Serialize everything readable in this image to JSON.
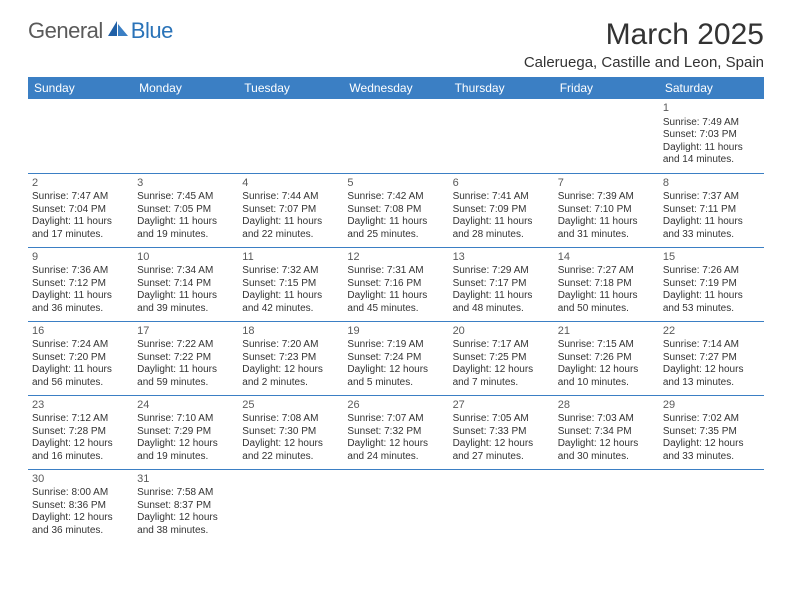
{
  "brand": {
    "general": "General",
    "blue": "Blue"
  },
  "title": "March 2025",
  "subtitle": "Caleruega, Castille and Leon, Spain",
  "day_headers": [
    "Sunday",
    "Monday",
    "Tuesday",
    "Wednesday",
    "Thursday",
    "Friday",
    "Saturday"
  ],
  "colors": {
    "header_bg": "#3b7fc4",
    "header_text": "#ffffff",
    "border": "#3b7fc4",
    "title_color": "#333333",
    "logo_gray": "#5a5a5a",
    "logo_blue": "#2a73b8"
  },
  "weeks": [
    [
      null,
      null,
      null,
      null,
      null,
      null,
      {
        "n": "1",
        "sunrise": "Sunrise: 7:49 AM",
        "sunset": "Sunset: 7:03 PM",
        "day": "Daylight: 11 hours and 14 minutes."
      }
    ],
    [
      {
        "n": "2",
        "sunrise": "Sunrise: 7:47 AM",
        "sunset": "Sunset: 7:04 PM",
        "day": "Daylight: 11 hours and 17 minutes."
      },
      {
        "n": "3",
        "sunrise": "Sunrise: 7:45 AM",
        "sunset": "Sunset: 7:05 PM",
        "day": "Daylight: 11 hours and 19 minutes."
      },
      {
        "n": "4",
        "sunrise": "Sunrise: 7:44 AM",
        "sunset": "Sunset: 7:07 PM",
        "day": "Daylight: 11 hours and 22 minutes."
      },
      {
        "n": "5",
        "sunrise": "Sunrise: 7:42 AM",
        "sunset": "Sunset: 7:08 PM",
        "day": "Daylight: 11 hours and 25 minutes."
      },
      {
        "n": "6",
        "sunrise": "Sunrise: 7:41 AM",
        "sunset": "Sunset: 7:09 PM",
        "day": "Daylight: 11 hours and 28 minutes."
      },
      {
        "n": "7",
        "sunrise": "Sunrise: 7:39 AM",
        "sunset": "Sunset: 7:10 PM",
        "day": "Daylight: 11 hours and 31 minutes."
      },
      {
        "n": "8",
        "sunrise": "Sunrise: 7:37 AM",
        "sunset": "Sunset: 7:11 PM",
        "day": "Daylight: 11 hours and 33 minutes."
      }
    ],
    [
      {
        "n": "9",
        "sunrise": "Sunrise: 7:36 AM",
        "sunset": "Sunset: 7:12 PM",
        "day": "Daylight: 11 hours and 36 minutes."
      },
      {
        "n": "10",
        "sunrise": "Sunrise: 7:34 AM",
        "sunset": "Sunset: 7:14 PM",
        "day": "Daylight: 11 hours and 39 minutes."
      },
      {
        "n": "11",
        "sunrise": "Sunrise: 7:32 AM",
        "sunset": "Sunset: 7:15 PM",
        "day": "Daylight: 11 hours and 42 minutes."
      },
      {
        "n": "12",
        "sunrise": "Sunrise: 7:31 AM",
        "sunset": "Sunset: 7:16 PM",
        "day": "Daylight: 11 hours and 45 minutes."
      },
      {
        "n": "13",
        "sunrise": "Sunrise: 7:29 AM",
        "sunset": "Sunset: 7:17 PM",
        "day": "Daylight: 11 hours and 48 minutes."
      },
      {
        "n": "14",
        "sunrise": "Sunrise: 7:27 AM",
        "sunset": "Sunset: 7:18 PM",
        "day": "Daylight: 11 hours and 50 minutes."
      },
      {
        "n": "15",
        "sunrise": "Sunrise: 7:26 AM",
        "sunset": "Sunset: 7:19 PM",
        "day": "Daylight: 11 hours and 53 minutes."
      }
    ],
    [
      {
        "n": "16",
        "sunrise": "Sunrise: 7:24 AM",
        "sunset": "Sunset: 7:20 PM",
        "day": "Daylight: 11 hours and 56 minutes."
      },
      {
        "n": "17",
        "sunrise": "Sunrise: 7:22 AM",
        "sunset": "Sunset: 7:22 PM",
        "day": "Daylight: 11 hours and 59 minutes."
      },
      {
        "n": "18",
        "sunrise": "Sunrise: 7:20 AM",
        "sunset": "Sunset: 7:23 PM",
        "day": "Daylight: 12 hours and 2 minutes."
      },
      {
        "n": "19",
        "sunrise": "Sunrise: 7:19 AM",
        "sunset": "Sunset: 7:24 PM",
        "day": "Daylight: 12 hours and 5 minutes."
      },
      {
        "n": "20",
        "sunrise": "Sunrise: 7:17 AM",
        "sunset": "Sunset: 7:25 PM",
        "day": "Daylight: 12 hours and 7 minutes."
      },
      {
        "n": "21",
        "sunrise": "Sunrise: 7:15 AM",
        "sunset": "Sunset: 7:26 PM",
        "day": "Daylight: 12 hours and 10 minutes."
      },
      {
        "n": "22",
        "sunrise": "Sunrise: 7:14 AM",
        "sunset": "Sunset: 7:27 PM",
        "day": "Daylight: 12 hours and 13 minutes."
      }
    ],
    [
      {
        "n": "23",
        "sunrise": "Sunrise: 7:12 AM",
        "sunset": "Sunset: 7:28 PM",
        "day": "Daylight: 12 hours and 16 minutes."
      },
      {
        "n": "24",
        "sunrise": "Sunrise: 7:10 AM",
        "sunset": "Sunset: 7:29 PM",
        "day": "Daylight: 12 hours and 19 minutes."
      },
      {
        "n": "25",
        "sunrise": "Sunrise: 7:08 AM",
        "sunset": "Sunset: 7:30 PM",
        "day": "Daylight: 12 hours and 22 minutes."
      },
      {
        "n": "26",
        "sunrise": "Sunrise: 7:07 AM",
        "sunset": "Sunset: 7:32 PM",
        "day": "Daylight: 12 hours and 24 minutes."
      },
      {
        "n": "27",
        "sunrise": "Sunrise: 7:05 AM",
        "sunset": "Sunset: 7:33 PM",
        "day": "Daylight: 12 hours and 27 minutes."
      },
      {
        "n": "28",
        "sunrise": "Sunrise: 7:03 AM",
        "sunset": "Sunset: 7:34 PM",
        "day": "Daylight: 12 hours and 30 minutes."
      },
      {
        "n": "29",
        "sunrise": "Sunrise: 7:02 AM",
        "sunset": "Sunset: 7:35 PM",
        "day": "Daylight: 12 hours and 33 minutes."
      }
    ],
    [
      {
        "n": "30",
        "sunrise": "Sunrise: 8:00 AM",
        "sunset": "Sunset: 8:36 PM",
        "day": "Daylight: 12 hours and 36 minutes."
      },
      {
        "n": "31",
        "sunrise": "Sunrise: 7:58 AM",
        "sunset": "Sunset: 8:37 PM",
        "day": "Daylight: 12 hours and 38 minutes."
      },
      null,
      null,
      null,
      null,
      null
    ]
  ]
}
